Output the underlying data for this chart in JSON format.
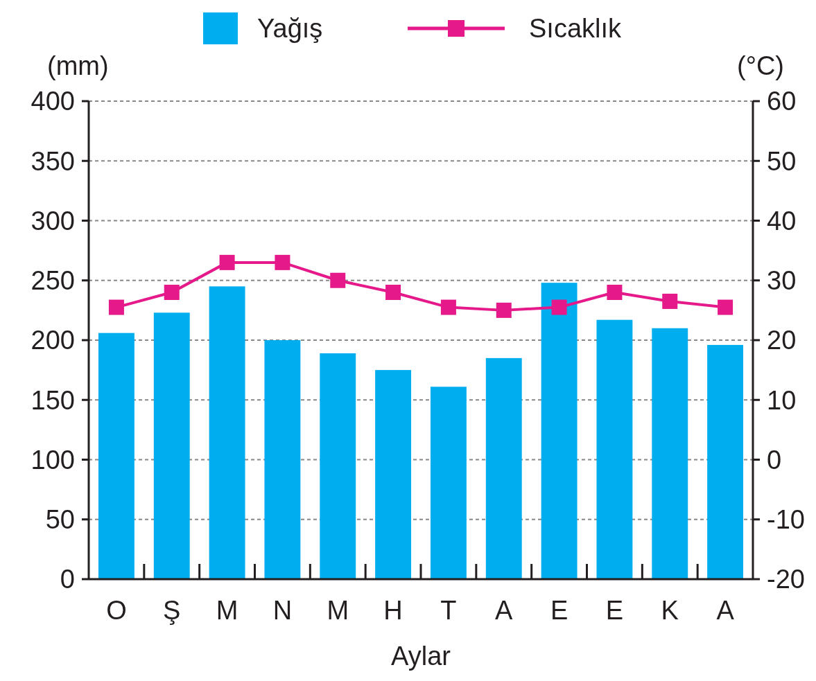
{
  "chart_data": {
    "type": "bar",
    "xlabel": "Aylar",
    "ylabel": "(mm)",
    "y2label": "(°C)",
    "categories": [
      "O",
      "Ş",
      "M",
      "N",
      "M",
      "H",
      "T",
      "A",
      "E",
      "E",
      "K",
      "A"
    ],
    "series": [
      {
        "name": "Yağış",
        "color": "#00aeef",
        "values": [
          206,
          223,
          245,
          200,
          189,
          175,
          161,
          185,
          248,
          217,
          210,
          196
        ]
      },
      {
        "name": "Sıcaklık",
        "type": "line",
        "axis": "y2",
        "color": "#e5198a",
        "marker": "square",
        "values": [
          25.5,
          28,
          33,
          33,
          30,
          28,
          25.5,
          25,
          25.5,
          28,
          26.5,
          25.5
        ]
      }
    ],
    "ylim": [
      0,
      400
    ],
    "yticks": [
      0,
      50,
      100,
      150,
      200,
      250,
      300,
      350,
      400
    ],
    "y2lim": [
      -20,
      60
    ],
    "y2ticks": [
      -20,
      -10,
      0,
      10,
      20,
      30,
      40,
      50,
      60
    ],
    "grid": "y",
    "legend": "top"
  }
}
